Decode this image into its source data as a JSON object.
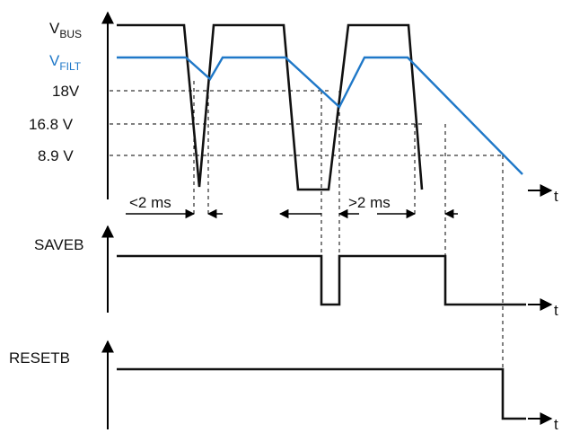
{
  "labels": {
    "vbus_main": "V",
    "vbus_sub": "BUS",
    "vfilt_main": "V",
    "vfilt_sub": "FILT",
    "v18": "18V",
    "v16_8": "16.8 V",
    "v8_9": "8.9 V",
    "saveb": "SAVEB",
    "resetb": "RESETB",
    "t1": "t",
    "t2": "t",
    "t3": "t",
    "lt2ms": "<2 ms",
    "gt2ms": ">2 ms"
  },
  "colors": {
    "vfilt": "#1f78c8",
    "lines": "#111111"
  }
}
